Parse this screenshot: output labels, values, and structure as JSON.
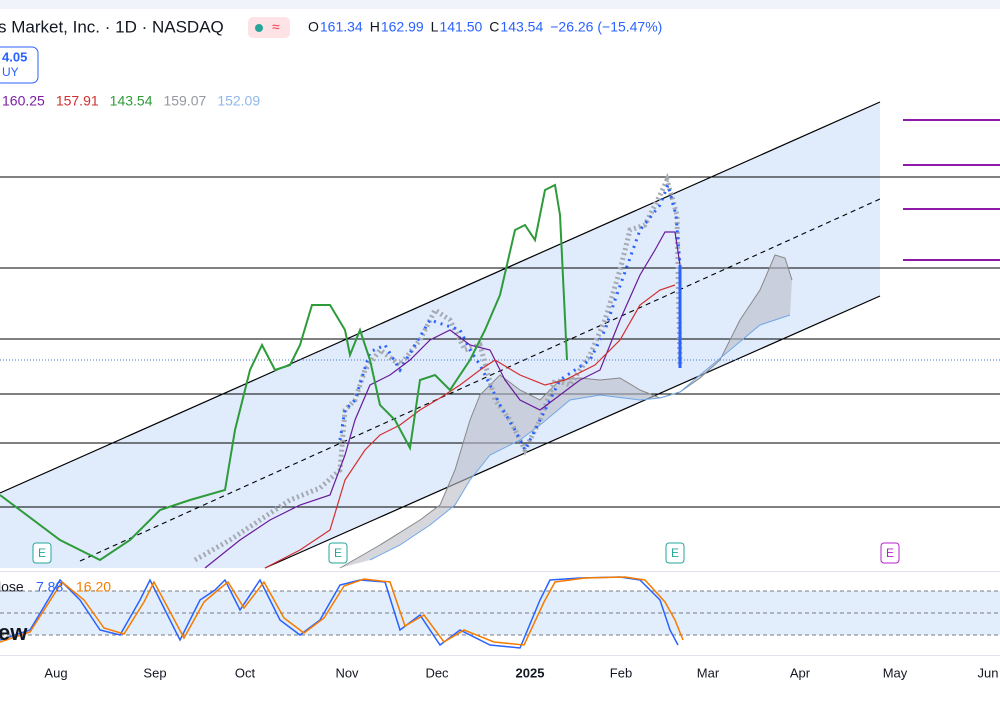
{
  "header": {
    "title": "s Market, Inc. · 1D · NASDAQ",
    "ohlc": [
      {
        "label": "O",
        "value": "161.34"
      },
      {
        "label": "H",
        "value": "162.99"
      },
      {
        "label": "L",
        "value": "141.50"
      },
      {
        "label": "C",
        "value": "143.54"
      }
    ],
    "change": "−26.26 (−15.47%)"
  },
  "price_badge": {
    "value": "4.05",
    "label": "UY"
  },
  "indicator_values": [
    "160.25",
    "157.91",
    "143.54",
    "159.07",
    "152.09"
  ],
  "oscillator": {
    "label": "lose",
    "values": [
      "7.88",
      "16.20"
    ]
  },
  "watermark": "ew",
  "x_axis": {
    "labels": [
      "Aug",
      "Sep",
      "Oct",
      "Nov",
      "Dec",
      "2025",
      "Feb",
      "Mar",
      "Apr",
      "May",
      "Jun"
    ]
  },
  "events": [
    "E",
    "E",
    "E",
    "E"
  ]
}
